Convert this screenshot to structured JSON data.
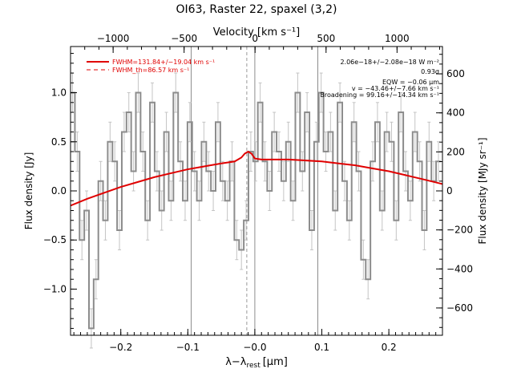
{
  "chart_data": {
    "type": "line",
    "title": "OI63, Raster 22, spaxel (3,2)",
    "xlabel": "λ−λ",
    "xlabel_sub": "rest",
    "xlabel_unit": "[μm]",
    "ylabel": "Flux density [Jy]",
    "ylabel_right": "Flux density [MJy sr⁻¹]",
    "xlabel_top": "Velocity [km s⁻¹]",
    "xlim": [
      -0.275,
      0.28
    ],
    "ylim": [
      -1.47,
      1.47
    ],
    "top_lim": [
      -1300,
      1320
    ],
    "right_lim": [
      -740,
      740
    ],
    "xticks": [
      -0.2,
      -0.1,
      0.0,
      0.1,
      0.2
    ],
    "xtick_labels": [
      "−0.2",
      "−0.1",
      "−0.0",
      "0.1",
      "0.2"
    ],
    "yticks": [
      -1.0,
      -0.5,
      0.0,
      0.5,
      1.0
    ],
    "ytick_labels": [
      "−1.0",
      "−0.5",
      "0.0",
      "0.5",
      "1.0"
    ],
    "top_ticks": [
      -1000,
      -500,
      0,
      500,
      1000
    ],
    "top_tick_labels": [
      "−1000",
      "−500",
      "0",
      "500",
      "1000"
    ],
    "right_ticks": [
      -600,
      -400,
      -200,
      0,
      200,
      400,
      600
    ],
    "right_tick_labels": [
      "−600",
      "−400",
      "−200",
      "0",
      "200",
      "400",
      "600"
    ],
    "vlines_solid": [
      -0.095,
      0.0,
      0.094
    ],
    "vline_dashed": -0.012,
    "legend": [
      {
        "label": "FWHM=131.84+/−19.04 km s⁻¹",
        "style": "solid",
        "color": "#e00000"
      },
      {
        "label": "FWHM_th=86.57 km s⁻¹",
        "style": "dashed",
        "color": "#e00000"
      }
    ],
    "annotations": [
      "2.06e−18+/−2.08e−18 W m⁻²",
      "0.93σ",
      "EQW = −0.06 μm",
      "v = −43.46+/−7.66 km s⁻¹",
      "Broadening = 99.16+/−14.34 km s⁻¹"
    ],
    "series": [
      {
        "style": "step",
        "color": "#8c8c8c",
        "x": [
          -0.272,
          -0.265,
          -0.258,
          -0.251,
          -0.244,
          -0.237,
          -0.23,
          -0.223,
          -0.216,
          -0.209,
          -0.202,
          -0.195,
          -0.188,
          -0.181,
          -0.174,
          -0.167,
          -0.16,
          -0.153,
          -0.146,
          -0.139,
          -0.132,
          -0.125,
          -0.118,
          -0.111,
          -0.104,
          -0.097,
          -0.09,
          -0.083,
          -0.076,
          -0.069,
          -0.062,
          -0.055,
          -0.048,
          -0.041,
          -0.034,
          -0.027,
          -0.02,
          -0.013,
          -0.006,
          0.001,
          0.008,
          0.015,
          0.022,
          0.029,
          0.036,
          0.043,
          0.05,
          0.057,
          0.064,
          0.071,
          0.078,
          0.085,
          0.092,
          0.099,
          0.106,
          0.113,
          0.12,
          0.127,
          0.134,
          0.141,
          0.148,
          0.155,
          0.162,
          0.169,
          0.176,
          0.183,
          0.19,
          0.197,
          0.204,
          0.211,
          0.218,
          0.225,
          0.232,
          0.239,
          0.246,
          0.253,
          0.26,
          0.267,
          0.274
        ],
        "values": [
          1.0,
          0.4,
          -0.5,
          -0.2,
          -1.4,
          -0.9,
          0.1,
          -0.3,
          0.5,
          0.3,
          -0.4,
          0.6,
          0.8,
          0.2,
          1.0,
          0.4,
          -0.3,
          0.9,
          0.2,
          -0.2,
          0.6,
          -0.1,
          1.0,
          0.3,
          -0.1,
          0.7,
          0.2,
          -0.1,
          0.5,
          0.2,
          0.0,
          0.7,
          0.1,
          -0.1,
          0.3,
          -0.5,
          -0.6,
          -0.3,
          0.4,
          0.3,
          0.9,
          0.3,
          0.0,
          0.6,
          0.4,
          0.1,
          0.5,
          -0.1,
          1.0,
          0.2,
          0.8,
          -0.4,
          0.5,
          1.0,
          0.4,
          0.6,
          -0.2,
          0.9,
          0.1,
          -0.3,
          0.7,
          0.2,
          -0.7,
          -0.9,
          0.3,
          0.7,
          -0.2,
          0.6,
          0.5,
          -0.3,
          0.8,
          0.2,
          -0.1,
          0.6,
          0.3,
          -0.4,
          0.5,
          0.1,
          0.3
        ],
        "errors": [
          0.2,
          0.2,
          0.2,
          0.2,
          0.2,
          0.2,
          0.2,
          0.2,
          0.2,
          0.2,
          0.2,
          0.2,
          0.2,
          0.2,
          0.2,
          0.2,
          0.2,
          0.2,
          0.2,
          0.2,
          0.2,
          0.2,
          0.2,
          0.2,
          0.2,
          0.2,
          0.2,
          0.2,
          0.2,
          0.2,
          0.2,
          0.2,
          0.2,
          0.2,
          0.2,
          0.2,
          0.2,
          0.2,
          0.2,
          0.2,
          0.2,
          0.2,
          0.2,
          0.2,
          0.2,
          0.2,
          0.2,
          0.2,
          0.2,
          0.2,
          0.2,
          0.2,
          0.2,
          0.2,
          0.2,
          0.2,
          0.2,
          0.2,
          0.2,
          0.2,
          0.2,
          0.2,
          0.2,
          0.2,
          0.2,
          0.2,
          0.2,
          0.2,
          0.2,
          0.2,
          0.2,
          0.2,
          0.2,
          0.2,
          0.2,
          0.2,
          0.2,
          0.2,
          0.2
        ]
      },
      {
        "style": "fit",
        "color": "#e00000",
        "x": [
          -0.275,
          -0.25,
          -0.225,
          -0.2,
          -0.175,
          -0.15,
          -0.125,
          -0.1,
          -0.075,
          -0.05,
          -0.03,
          -0.02,
          -0.015,
          -0.01,
          -0.005,
          0.0,
          0.01,
          0.03,
          0.05,
          0.075,
          0.1,
          0.125,
          0.15,
          0.175,
          0.2,
          0.225,
          0.25,
          0.28
        ],
        "values": [
          -0.15,
          -0.08,
          -0.02,
          0.04,
          0.09,
          0.14,
          0.18,
          0.22,
          0.25,
          0.28,
          0.3,
          0.34,
          0.38,
          0.4,
          0.38,
          0.33,
          0.32,
          0.32,
          0.32,
          0.31,
          0.3,
          0.28,
          0.26,
          0.23,
          0.2,
          0.16,
          0.12,
          0.07
        ]
      }
    ]
  }
}
